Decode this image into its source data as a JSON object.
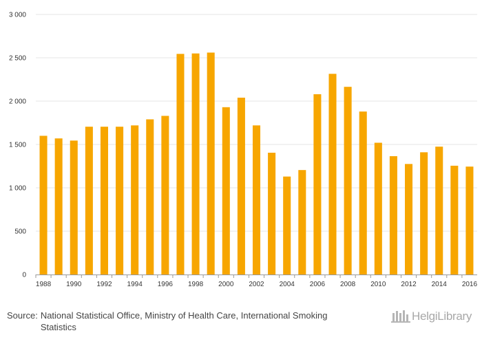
{
  "chart_data": {
    "type": "bar",
    "title": "",
    "xlabel": "",
    "ylabel": "",
    "x": [
      1988,
      1989,
      1990,
      1991,
      1992,
      1993,
      1994,
      1995,
      1996,
      1997,
      1998,
      1999,
      2000,
      2001,
      2002,
      2003,
      2004,
      2005,
      2006,
      2007,
      2008,
      2009,
      2010,
      2011,
      2012,
      2013,
      2014,
      2015,
      2016
    ],
    "values": [
      1600,
      1570,
      1545,
      1705,
      1705,
      1705,
      1720,
      1790,
      1830,
      2545,
      2550,
      2560,
      1930,
      2040,
      1720,
      1405,
      1130,
      1205,
      2080,
      2315,
      2165,
      1880,
      1520,
      1365,
      1275,
      1410,
      1475,
      1255,
      1245
    ],
    "ylim": [
      0,
      3000
    ],
    "yticks": [
      0,
      500,
      1000,
      1500,
      2000,
      2500,
      3000
    ],
    "ytick_labels": [
      "0",
      "500",
      "1 000",
      "1 500",
      "2 000",
      "2 500",
      "3 000"
    ],
    "xtick_labels": [
      "1988",
      "1990",
      "1992",
      "1994",
      "1996",
      "1998",
      "2000",
      "2002",
      "2004",
      "2006",
      "2008",
      "2010",
      "2012",
      "2014",
      "2016"
    ],
    "grid": true,
    "legend": "none",
    "bar_color": "#f7a600"
  },
  "footer": {
    "source_label": "Source:",
    "source_text": "National Statistical Office, Ministry of Health Care, International Smoking Statistics",
    "logo_text": "HelgiLibrary",
    "logo_icon": "library-icon"
  }
}
